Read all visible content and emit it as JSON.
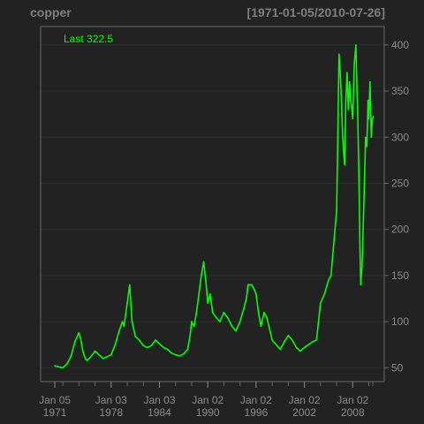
{
  "chart_data": {
    "type": "line",
    "title": "copper",
    "date_range_label": "[1971-01-05/2010-07-26]",
    "last_label": "Last 322.5",
    "xlabel": "",
    "ylabel": "",
    "xlim": [
      1971.0,
      2010.6
    ],
    "ylim": [
      35,
      420
    ],
    "y_ticks": [
      50,
      100,
      150,
      200,
      250,
      300,
      350,
      400
    ],
    "x_ticks": [
      {
        "year": 1971.01,
        "label1": "Jan 05",
        "label2": "1971"
      },
      {
        "year": 1978.0,
        "label1": "Jan 03",
        "label2": "1978"
      },
      {
        "year": 1984.0,
        "label1": "Jan 03",
        "label2": "1984"
      },
      {
        "year": 1990.0,
        "label1": "Jan 02",
        "label2": "1990"
      },
      {
        "year": 1996.0,
        "label1": "Jan 02",
        "label2": "1996"
      },
      {
        "year": 2002.0,
        "label1": "Jan 02",
        "label2": "2002"
      },
      {
        "year": 2008.0,
        "label1": "Jan 02",
        "label2": "2008"
      }
    ],
    "minor_x_ticks": [
      1971.0,
      1972.0,
      1974.0,
      1976.0,
      1978.0,
      1980.0,
      1982.0,
      1984.0,
      1986.0,
      1988.0,
      1990.0,
      1992.0,
      1994.0,
      1996.0,
      1998.0,
      2000.0,
      2002.0,
      2004.0,
      2006.0,
      2008.0,
      2010.0,
      2010.5
    ],
    "grid": true,
    "y_axis_side": "right",
    "series": [
      {
        "color": "#00ff00",
        "x": [
          1971.0,
          1971.5,
          1972.0,
          1972.5,
          1973.0,
          1973.5,
          1974.0,
          1974.2,
          1974.4,
          1974.6,
          1974.8,
          1975.0,
          1975.5,
          1976.0,
          1976.5,
          1977.0,
          1977.5,
          1978.0,
          1978.5,
          1979.0,
          1979.4,
          1979.6,
          1980.0,
          1980.3,
          1980.6,
          1981.0,
          1981.5,
          1982.0,
          1982.5,
          1983.0,
          1983.5,
          1984.0,
          1984.5,
          1985.0,
          1985.5,
          1986.0,
          1986.5,
          1987.0,
          1987.5,
          1987.8,
          1988.0,
          1988.3,
          1988.6,
          1988.9,
          1989.2,
          1989.5,
          1989.8,
          1990.0,
          1990.3,
          1990.6,
          1991.0,
          1991.5,
          1992.0,
          1992.5,
          1993.0,
          1993.5,
          1994.0,
          1994.5,
          1994.8,
          1995.0,
          1995.5,
          1996.0,
          1996.3,
          1996.6,
          1997.0,
          1997.3,
          1997.6,
          1998.0,
          1998.5,
          1999.0,
          1999.5,
          2000.0,
          2000.5,
          2001.0,
          2001.5,
          2002.0,
          2002.5,
          2003.0,
          2003.5,
          2004.0,
          2004.5,
          2005.0,
          2005.3,
          2005.6,
          2006.0,
          2006.15,
          2006.3,
          2006.45,
          2006.6,
          2006.75,
          2006.9,
          2007.0,
          2007.15,
          2007.3,
          2007.45,
          2007.6,
          2007.75,
          2007.9,
          2008.0,
          2008.2,
          2008.4,
          2008.5,
          2008.6,
          2008.75,
          2008.9,
          2009.0,
          2009.15,
          2009.3,
          2009.45,
          2009.6,
          2009.75,
          2009.9,
          2010.0,
          2010.15,
          2010.3,
          2010.45,
          2010.56
        ],
        "y": [
          52,
          51,
          50,
          54,
          62,
          78,
          88,
          82,
          72,
          65,
          60,
          58,
          62,
          68,
          64,
          60,
          62,
          64,
          75,
          90,
          100,
          95,
          120,
          140,
          100,
          84,
          80,
          74,
          72,
          74,
          80,
          76,
          72,
          70,
          66,
          64,
          63,
          65,
          70,
          85,
          100,
          95,
          110,
          130,
          150,
          165,
          140,
          120,
          130,
          110,
          105,
          100,
          110,
          104,
          95,
          90,
          100,
          115,
          125,
          140,
          140,
          130,
          110,
          95,
          110,
          105,
          95,
          80,
          75,
          70,
          78,
          85,
          80,
          72,
          68,
          72,
          75,
          78,
          80,
          120,
          130,
          145,
          150,
          180,
          220,
          300,
          390,
          370,
          340,
          300,
          280,
          270,
          340,
          370,
          330,
          360,
          340,
          330,
          320,
          380,
          400,
          360,
          330,
          270,
          180,
          140,
          160,
          200,
          250,
          300,
          290,
          340,
          320,
          360,
          300,
          320,
          322.5
        ]
      }
    ]
  }
}
